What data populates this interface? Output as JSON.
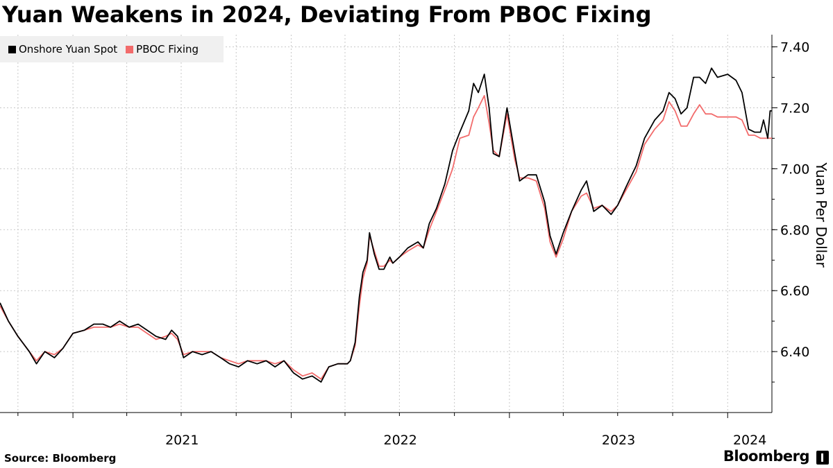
{
  "title": "Yuan Weakens in 2024, Deviating From PBOC Fixing",
  "source": "Source: Bloomberg",
  "brand": "Bloomberg",
  "colors": {
    "spot": "#000000",
    "fixing": "#f26b6b",
    "grid": "#c8c8c8",
    "legend_bg": "#f0f0f0"
  },
  "chart_data": {
    "type": "line",
    "ylabel": "Yuan Per Dollar",
    "ylim": [
      6.2,
      7.44
    ],
    "yticks": [
      "6.40",
      "6.60",
      "6.80",
      "7.00",
      "7.20",
      "7.40"
    ],
    "xlim": [
      "2020-09-01",
      "2024-03-15"
    ],
    "xticks": [
      "2021",
      "2022",
      "2023",
      "2024"
    ],
    "legend_position": "top-left",
    "series": [
      {
        "name": "Onshore Yuan Spot",
        "color": "#000000",
        "points": [
          [
            "2020-09-01",
            6.56
          ],
          [
            "2020-09-15",
            6.5
          ],
          [
            "2020-10-01",
            6.45
          ],
          [
            "2020-10-20",
            6.4
          ],
          [
            "2020-11-01",
            6.36
          ],
          [
            "2020-11-15",
            6.4
          ],
          [
            "2020-12-01",
            6.38
          ],
          [
            "2020-12-15",
            6.41
          ],
          [
            "2021-01-01",
            6.46
          ],
          [
            "2021-01-20",
            6.47
          ],
          [
            "2021-02-05",
            6.49
          ],
          [
            "2021-02-20",
            6.49
          ],
          [
            "2021-03-05",
            6.48
          ],
          [
            "2021-03-20",
            6.5
          ],
          [
            "2021-04-05",
            6.48
          ],
          [
            "2021-04-20",
            6.49
          ],
          [
            "2021-05-05",
            6.47
          ],
          [
            "2021-05-20",
            6.45
          ],
          [
            "2021-06-05",
            6.44
          ],
          [
            "2021-06-15",
            6.47
          ],
          [
            "2021-06-25",
            6.45
          ],
          [
            "2021-07-05",
            6.38
          ],
          [
            "2021-07-20",
            6.4
          ],
          [
            "2021-08-05",
            6.39
          ],
          [
            "2021-08-20",
            6.4
          ],
          [
            "2021-09-05",
            6.38
          ],
          [
            "2021-09-20",
            6.36
          ],
          [
            "2021-10-05",
            6.35
          ],
          [
            "2021-10-20",
            6.37
          ],
          [
            "2021-11-05",
            6.36
          ],
          [
            "2021-11-20",
            6.37
          ],
          [
            "2021-12-05",
            6.35
          ],
          [
            "2021-12-20",
            6.37
          ],
          [
            "2022-01-05",
            6.33
          ],
          [
            "2022-01-20",
            6.31
          ],
          [
            "2022-02-05",
            6.32
          ],
          [
            "2022-02-20",
            6.3
          ],
          [
            "2022-03-05",
            6.35
          ],
          [
            "2022-03-20",
            6.36
          ],
          [
            "2022-04-05",
            6.36
          ],
          [
            "2022-04-10",
            6.37
          ],
          [
            "2022-04-18",
            6.43
          ],
          [
            "2022-04-25",
            6.58
          ],
          [
            "2022-05-01",
            6.66
          ],
          [
            "2022-05-08",
            6.7
          ],
          [
            "2022-05-12",
            6.79
          ],
          [
            "2022-05-20",
            6.72
          ],
          [
            "2022-05-28",
            6.67
          ],
          [
            "2022-06-05",
            6.67
          ],
          [
            "2022-06-15",
            6.71
          ],
          [
            "2022-06-20",
            6.69
          ],
          [
            "2022-07-01",
            6.71
          ],
          [
            "2022-07-15",
            6.74
          ],
          [
            "2022-08-01",
            6.76
          ],
          [
            "2022-08-10",
            6.74
          ],
          [
            "2022-08-20",
            6.82
          ],
          [
            "2022-09-01",
            6.87
          ],
          [
            "2022-09-15",
            6.95
          ],
          [
            "2022-09-28",
            7.06
          ],
          [
            "2022-10-10",
            7.12
          ],
          [
            "2022-10-25",
            7.19
          ],
          [
            "2022-11-02",
            7.28
          ],
          [
            "2022-11-10",
            7.25
          ],
          [
            "2022-11-20",
            7.31
          ],
          [
            "2022-11-28",
            7.2
          ],
          [
            "2022-12-05",
            7.05
          ],
          [
            "2022-12-15",
            7.04
          ],
          [
            "2022-12-28",
            7.2
          ],
          [
            "2023-01-10",
            7.05
          ],
          [
            "2023-01-18",
            6.96
          ],
          [
            "2023-02-01",
            6.98
          ],
          [
            "2023-02-15",
            6.98
          ],
          [
            "2023-03-01",
            6.89
          ],
          [
            "2023-03-10",
            6.78
          ],
          [
            "2023-03-20",
            6.72
          ],
          [
            "2023-04-01",
            6.79
          ],
          [
            "2023-04-15",
            6.86
          ],
          [
            "2023-05-01",
            6.93
          ],
          [
            "2023-05-10",
            6.96
          ],
          [
            "2023-05-22",
            6.86
          ],
          [
            "2023-06-05",
            6.88
          ],
          [
            "2023-06-20",
            6.85
          ],
          [
            "2023-07-01",
            6.88
          ],
          [
            "2023-07-15",
            6.94
          ],
          [
            "2023-08-01",
            7.01
          ],
          [
            "2023-08-15",
            7.1
          ],
          [
            "2023-09-01",
            7.16
          ],
          [
            "2023-09-15",
            7.19
          ],
          [
            "2023-09-25",
            7.25
          ],
          [
            "2023-10-05",
            7.23
          ],
          [
            "2023-10-15",
            7.18
          ],
          [
            "2023-10-25",
            7.2
          ],
          [
            "2023-11-05",
            7.3
          ],
          [
            "2023-11-15",
            7.3
          ],
          [
            "2023-11-25",
            7.28
          ],
          [
            "2023-12-05",
            7.33
          ],
          [
            "2023-12-15",
            7.3
          ],
          [
            "2024-01-01",
            7.31
          ],
          [
            "2024-01-15",
            7.29
          ],
          [
            "2024-01-25",
            7.25
          ],
          [
            "2024-02-05",
            7.13
          ],
          [
            "2024-02-15",
            7.12
          ],
          [
            "2024-02-25",
            7.12
          ],
          [
            "2024-03-01",
            7.16
          ],
          [
            "2024-03-08",
            7.1
          ],
          [
            "2024-03-12",
            7.19
          ],
          [
            "2024-03-15",
            7.19
          ]
        ]
      },
      {
        "name": "PBOC Fixing",
        "color": "#f26b6b",
        "points": [
          [
            "2020-09-01",
            6.55
          ],
          [
            "2020-09-15",
            6.5
          ],
          [
            "2020-10-01",
            6.45
          ],
          [
            "2020-10-20",
            6.4
          ],
          [
            "2020-11-01",
            6.37
          ],
          [
            "2020-11-15",
            6.4
          ],
          [
            "2020-12-01",
            6.39
          ],
          [
            "2020-12-15",
            6.41
          ],
          [
            "2021-01-01",
            6.46
          ],
          [
            "2021-01-20",
            6.47
          ],
          [
            "2021-02-05",
            6.48
          ],
          [
            "2021-02-20",
            6.48
          ],
          [
            "2021-03-05",
            6.48
          ],
          [
            "2021-03-20",
            6.49
          ],
          [
            "2021-04-05",
            6.48
          ],
          [
            "2021-04-20",
            6.48
          ],
          [
            "2021-05-05",
            6.46
          ],
          [
            "2021-05-20",
            6.44
          ],
          [
            "2021-06-05",
            6.45
          ],
          [
            "2021-06-15",
            6.46
          ],
          [
            "2021-06-25",
            6.44
          ],
          [
            "2021-07-05",
            6.39
          ],
          [
            "2021-07-20",
            6.4
          ],
          [
            "2021-08-05",
            6.4
          ],
          [
            "2021-08-20",
            6.4
          ],
          [
            "2021-09-05",
            6.38
          ],
          [
            "2021-09-20",
            6.37
          ],
          [
            "2021-10-05",
            6.36
          ],
          [
            "2021-10-20",
            6.37
          ],
          [
            "2021-11-05",
            6.37
          ],
          [
            "2021-11-20",
            6.37
          ],
          [
            "2021-12-05",
            6.36
          ],
          [
            "2021-12-20",
            6.37
          ],
          [
            "2022-01-05",
            6.34
          ],
          [
            "2022-01-20",
            6.32
          ],
          [
            "2022-02-05",
            6.33
          ],
          [
            "2022-02-20",
            6.31
          ],
          [
            "2022-03-05",
            6.35
          ],
          [
            "2022-03-20",
            6.36
          ],
          [
            "2022-04-05",
            6.36
          ],
          [
            "2022-04-10",
            6.37
          ],
          [
            "2022-04-18",
            6.42
          ],
          [
            "2022-04-25",
            6.55
          ],
          [
            "2022-05-01",
            6.64
          ],
          [
            "2022-05-08",
            6.69
          ],
          [
            "2022-05-12",
            6.78
          ],
          [
            "2022-05-20",
            6.73
          ],
          [
            "2022-05-28",
            6.68
          ],
          [
            "2022-06-05",
            6.68
          ],
          [
            "2022-06-15",
            6.7
          ],
          [
            "2022-06-20",
            6.69
          ],
          [
            "2022-07-01",
            6.71
          ],
          [
            "2022-07-15",
            6.73
          ],
          [
            "2022-08-01",
            6.75
          ],
          [
            "2022-08-10",
            6.74
          ],
          [
            "2022-08-20",
            6.8
          ],
          [
            "2022-09-01",
            6.86
          ],
          [
            "2022-09-15",
            6.93
          ],
          [
            "2022-09-28",
            7.0
          ],
          [
            "2022-10-10",
            7.1
          ],
          [
            "2022-10-25",
            7.11
          ],
          [
            "2022-11-02",
            7.17
          ],
          [
            "2022-11-10",
            7.2
          ],
          [
            "2022-11-20",
            7.24
          ],
          [
            "2022-11-28",
            7.15
          ],
          [
            "2022-12-05",
            7.06
          ],
          [
            "2022-12-15",
            7.04
          ],
          [
            "2022-12-28",
            7.18
          ],
          [
            "2023-01-10",
            7.03
          ],
          [
            "2023-01-18",
            6.97
          ],
          [
            "2023-02-01",
            6.97
          ],
          [
            "2023-02-15",
            6.96
          ],
          [
            "2023-03-01",
            6.87
          ],
          [
            "2023-03-10",
            6.76
          ],
          [
            "2023-03-20",
            6.71
          ],
          [
            "2023-04-01",
            6.77
          ],
          [
            "2023-04-15",
            6.86
          ],
          [
            "2023-05-01",
            6.91
          ],
          [
            "2023-05-10",
            6.92
          ],
          [
            "2023-05-22",
            6.87
          ],
          [
            "2023-06-05",
            6.88
          ],
          [
            "2023-06-20",
            6.86
          ],
          [
            "2023-07-01",
            6.88
          ],
          [
            "2023-07-15",
            6.93
          ],
          [
            "2023-08-01",
            6.99
          ],
          [
            "2023-08-15",
            7.08
          ],
          [
            "2023-09-01",
            7.13
          ],
          [
            "2023-09-15",
            7.16
          ],
          [
            "2023-09-25",
            7.22
          ],
          [
            "2023-10-05",
            7.19
          ],
          [
            "2023-10-15",
            7.14
          ],
          [
            "2023-10-25",
            7.14
          ],
          [
            "2023-11-05",
            7.18
          ],
          [
            "2023-11-15",
            7.21
          ],
          [
            "2023-11-25",
            7.18
          ],
          [
            "2023-12-05",
            7.18
          ],
          [
            "2023-12-15",
            7.17
          ],
          [
            "2024-01-01",
            7.17
          ],
          [
            "2024-01-15",
            7.17
          ],
          [
            "2024-01-25",
            7.16
          ],
          [
            "2024-02-05",
            7.11
          ],
          [
            "2024-02-15",
            7.11
          ],
          [
            "2024-02-25",
            7.1
          ],
          [
            "2024-03-01",
            7.1
          ],
          [
            "2024-03-08",
            7.1
          ],
          [
            "2024-03-12",
            7.1
          ],
          [
            "2024-03-15",
            7.1
          ]
        ]
      }
    ]
  }
}
